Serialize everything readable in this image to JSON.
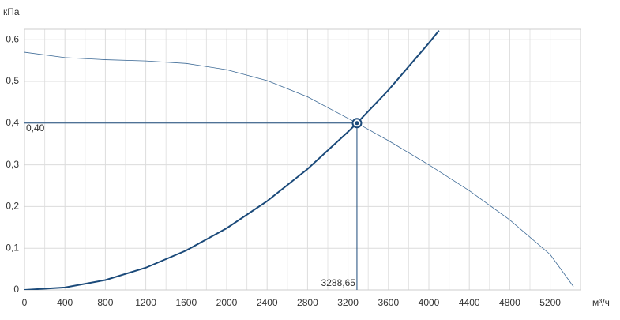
{
  "chart_data": {
    "type": "line",
    "y_label": "кПа",
    "x_label": "м³/ч",
    "xlim": [
      0,
      5500
    ],
    "ylim": [
      0,
      0.625
    ],
    "xticks": [
      0,
      400,
      800,
      1200,
      1600,
      2000,
      2400,
      2800,
      3200,
      3600,
      4000,
      4400,
      4800,
      5200
    ],
    "yticks": [
      0,
      {
        "value": 0.1,
        "label": "0,1"
      },
      {
        "value": 0.2,
        "label": "0,2"
      },
      {
        "value": 0.3,
        "label": "0,3"
      },
      {
        "value": 0.4,
        "label": "0,4"
      },
      {
        "value": 0.5,
        "label": "0,5"
      },
      {
        "value": 0.6,
        "label": "0,6"
      }
    ],
    "grid": true,
    "series": [
      {
        "color": "#3d6a96",
        "width": 0.8,
        "x": [
          0,
          400,
          800,
          1200,
          1600,
          2000,
          2400,
          2800,
          3288.65,
          3600,
          4000,
          4400,
          4800,
          5200,
          5430
        ],
        "values": [
          0.57,
          0.557,
          0.552,
          0.549,
          0.543,
          0.528,
          0.502,
          0.463,
          0.4,
          0.358,
          0.3,
          0.238,
          0.168,
          0.085,
          0.008
        ]
      },
      {
        "color": "#1b4a7a",
        "width": 2,
        "x": [
          0,
          400,
          800,
          1200,
          1600,
          2000,
          2400,
          2800,
          3200,
          3288.65,
          3600,
          4000,
          4100
        ],
        "values": [
          0,
          0.0059,
          0.0237,
          0.0533,
          0.0947,
          0.148,
          0.213,
          0.29,
          0.379,
          0.4,
          0.479,
          0.592,
          0.622
        ]
      }
    ],
    "operating_point": {
      "x": 3288.65,
      "y": 0.4,
      "x_text": "3288,65",
      "y_text": "0,40",
      "color": "#1b4a7a"
    }
  }
}
